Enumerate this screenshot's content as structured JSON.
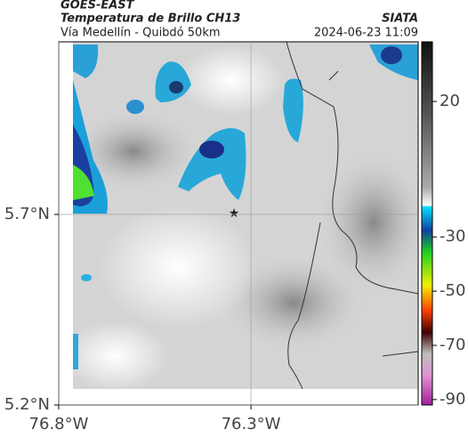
{
  "header": {
    "satellite": "GOES-EAST",
    "product": "Temperatura de Brillo CH13",
    "source": "SIATA",
    "route": "Vía Medellín - Quibdó 50km",
    "timestamp": "2024-06-23 11:09"
  },
  "map": {
    "xlim": [
      -76.8,
      -75.865
    ],
    "ylim": [
      5.2,
      6.153
    ],
    "xticks": [
      {
        "value": -76.8,
        "label": "76.8°W"
      },
      {
        "value": -76.3,
        "label": "76.3°W"
      }
    ],
    "yticks": [
      {
        "value": 5.7,
        "label": "5.7°N"
      },
      {
        "value": 5.2,
        "label": "5.2°N"
      }
    ]
  },
  "colorbar": {
    "lim": [
      -92,
      42
    ],
    "ticks": [
      20,
      -30,
      -50,
      -70,
      -90
    ]
  }
}
